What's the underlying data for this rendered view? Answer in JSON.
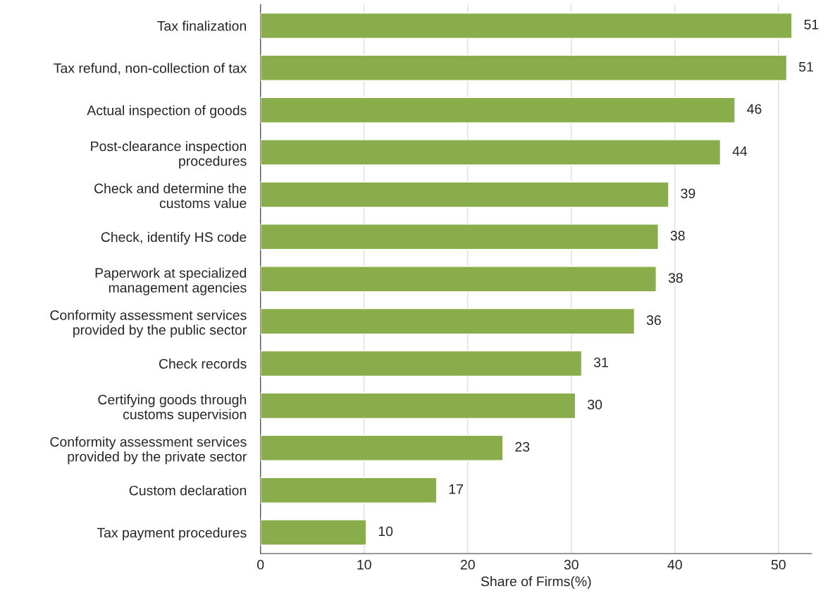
{
  "chart_data": {
    "type": "bar",
    "orientation": "horizontal",
    "xlabel": "Share of Firms(%)",
    "categories": [
      "Tax finalization",
      "Tax refund, non-collection of tax",
      "Actual inspection of goods",
      "Post-clearance inspection\nprocedures",
      "Check and determine the\ncustoms value",
      "Check, identify HS code",
      "Paperwork at specialized\nmanagement agencies",
      "Conformity assessment services\nprovided by the public sector",
      "Check records",
      "Certifying goods through\ncustoms supervision",
      "Conformity assessment services\nprovided by the private sector",
      "Custom declaration",
      "Tax payment procedures"
    ],
    "values": [
      51.3,
      50.8,
      45.8,
      44.4,
      39.4,
      38.4,
      38.2,
      36.1,
      31.0,
      30.4,
      23.4,
      17.0,
      10.2
    ],
    "value_labels": [
      "51",
      "51",
      "46",
      "44",
      "39",
      "38",
      "38",
      "36",
      "31",
      "30",
      "23",
      "17",
      "10"
    ],
    "color": "#8aad4b",
    "xlim": [
      0,
      53.2
    ],
    "xticks": [
      0,
      10,
      20,
      30,
      40,
      50
    ],
    "grid": "x",
    "legend": false
  }
}
